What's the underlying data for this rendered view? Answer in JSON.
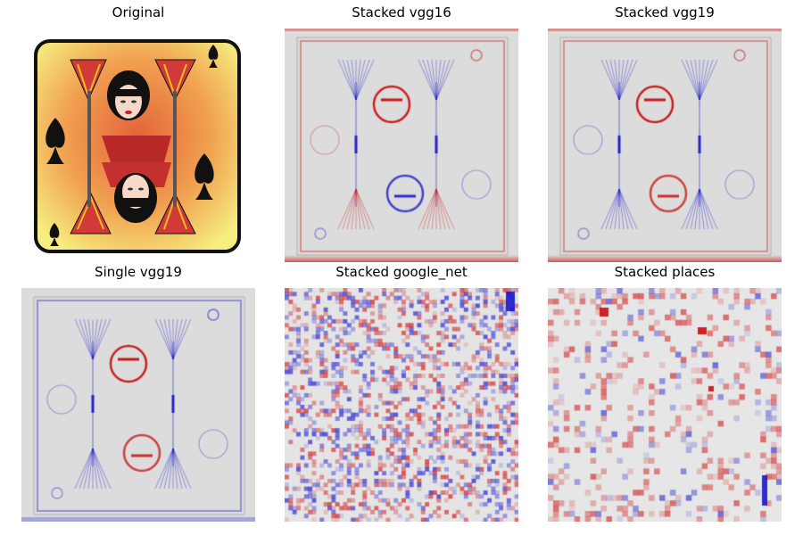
{
  "figure": {
    "panels": [
      {
        "title": "Original",
        "kind": "card"
      },
      {
        "title": "Stacked vgg16",
        "kind": "saliency-smooth",
        "palette": "mostly-red"
      },
      {
        "title": "Stacked vgg19",
        "kind": "saliency-smooth",
        "palette": "mixed"
      },
      {
        "title": "Single vgg19",
        "kind": "saliency-smooth",
        "palette": "mostly-blue"
      },
      {
        "title": "Stacked google_net",
        "kind": "saliency-noisy",
        "palette": "mixed"
      },
      {
        "title": "Stacked places",
        "kind": "saliency-blocky",
        "palette": "mostly-red"
      }
    ],
    "colors": {
      "positive": "#cc0000",
      "negative": "#0000cc",
      "neutral": "#dcdcdc",
      "card_border": "#111111",
      "card_glow_inner": "#e9773f",
      "card_glow_outer": "#f4ef7d"
    }
  }
}
